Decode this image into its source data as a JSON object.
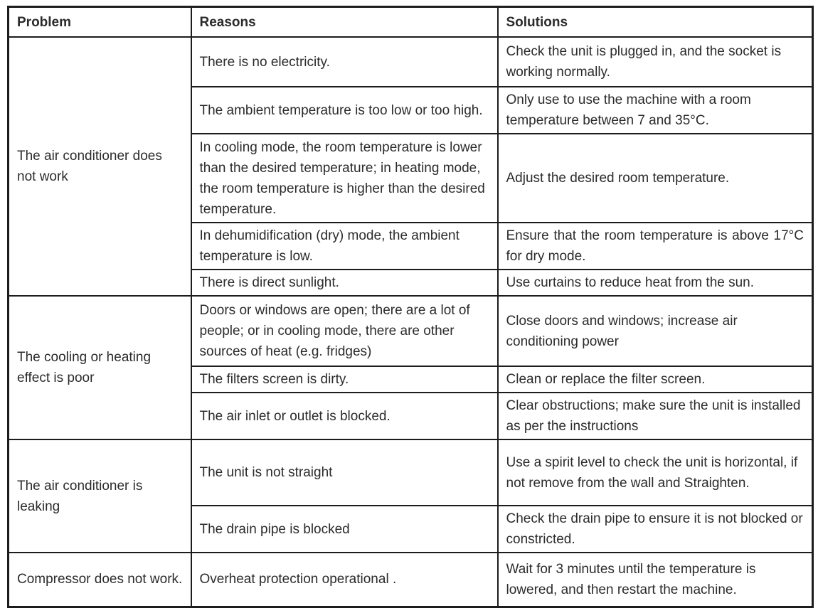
{
  "table": {
    "headers": {
      "problem": "Problem",
      "reasons": "Reasons",
      "solutions": "Solutions"
    },
    "colors": {
      "border": "#1c1c1c",
      "text": "#2b2b2b",
      "background": "#ffffff"
    },
    "groups": [
      {
        "problem": "The air conditioner does not work",
        "rows": [
          {
            "reason": "There is no electricity.",
            "solution": "Check the unit is plugged in, and the socket is working normally."
          },
          {
            "reason": "The ambient temperature is too low or too high.",
            "solution": "Only use to use the machine with a room temperature between 7 and 35°C."
          },
          {
            "reason": "In cooling mode, the room temperature is lower than the desired temperature; in heating mode, the room temperature is higher than the desired temperature.",
            "solution": "Adjust the desired room temperature."
          },
          {
            "reason": "In dehumidification (dry) mode, the ambient temperature is low.",
            "solution": "Ensure that the room temperature is above 17°C for dry mode."
          },
          {
            "reason": "There is direct sunlight.",
            "solution": "Use curtains to reduce heat from the sun."
          }
        ]
      },
      {
        "problem": "The cooling or heating effect is poor",
        "rows": [
          {
            "reason": "Doors or windows are open; there are a lot of people; or in cooling mode, there are other sources of heat (e.g. fridges)",
            "solution": "Close doors and windows; increase air conditioning power"
          },
          {
            "reason": "The filters screen is dirty.",
            "solution": "Clean or replace the filter screen."
          },
          {
            "reason": "The air inlet or outlet is blocked.",
            "solution": "Clear obstructions; make sure the unit is installed as per the instructions"
          }
        ]
      },
      {
        "problem": "The air conditioner is leaking",
        "rows": [
          {
            "reason": "The unit is not straight",
            "solution": "Use a spirit level to check the unit is horizontal, if not remove from the wall and Straighten."
          },
          {
            "reason": "The drain pipe is blocked",
            "solution": "Check the drain pipe to ensure it is not blocked or constricted."
          }
        ]
      },
      {
        "problem": "Compressor does not work.",
        "rows": [
          {
            "reason": "Overheat protection operational .",
            "solution": "Wait for 3 minutes until the temperature is lowered, and then restart the machine."
          }
        ]
      }
    ]
  }
}
